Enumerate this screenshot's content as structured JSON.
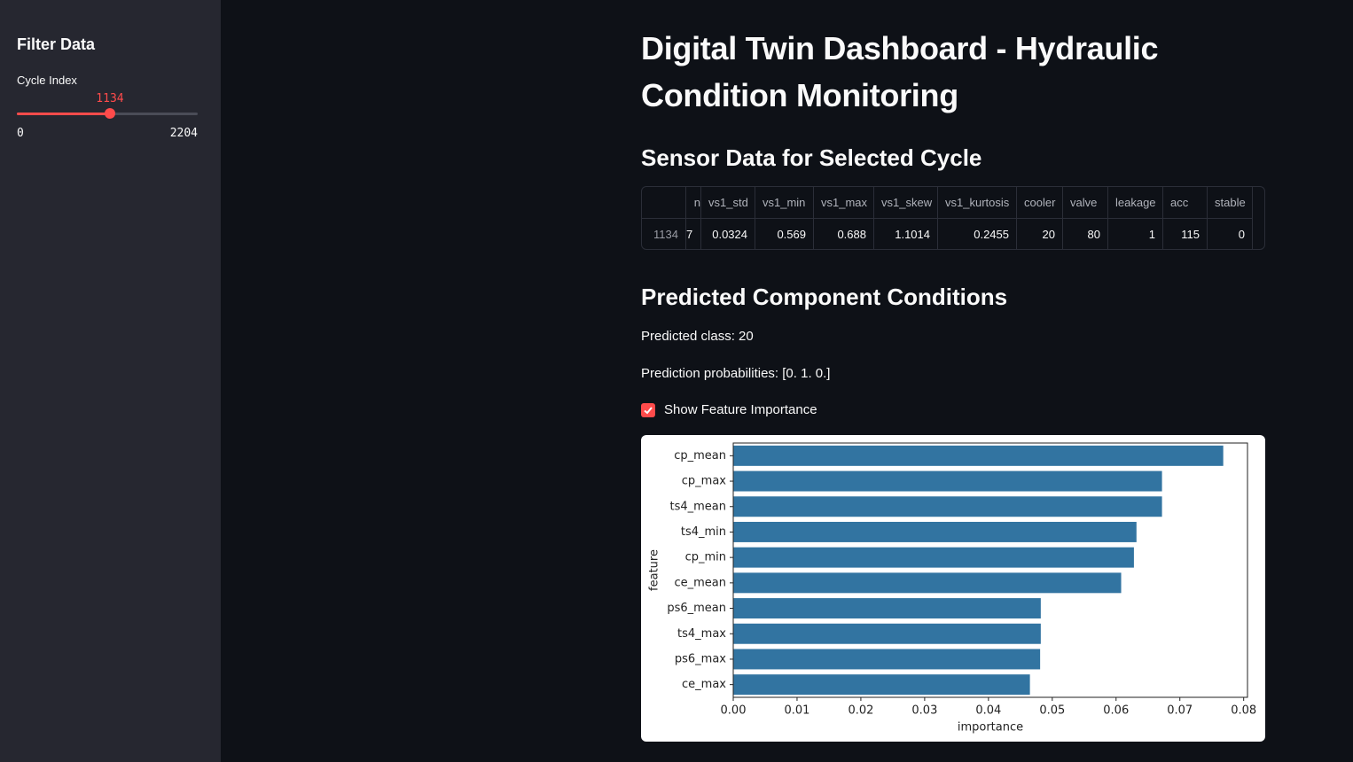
{
  "sidebar": {
    "title": "Filter Data",
    "slider": {
      "label": "Cycle Index",
      "value": 1134,
      "min": 0,
      "max": 2204
    }
  },
  "header": {
    "title": "Digital Twin Dashboard - Hydraulic Condition Monitoring"
  },
  "sensor_section": {
    "title": "Sensor Data for Selected Cycle",
    "table": {
      "columns": [
        "n",
        "vs1_std",
        "vs1_min",
        "vs1_max",
        "vs1_skew",
        "vs1_kurtosis",
        "cooler",
        "valve",
        "leakage",
        "acc",
        "stable"
      ],
      "rows": [
        {
          "index": 1134,
          "cells": [
            "7",
            0.0324,
            0.569,
            0.688,
            1.1014,
            0.2455,
            20,
            80,
            1,
            115,
            0
          ]
        }
      ]
    }
  },
  "prediction_section": {
    "title": "Predicted Component Conditions",
    "predicted_class": "Predicted class: 20",
    "probabilities": "Prediction probabilities: [0. 1. 0.]",
    "checkbox": {
      "label": "Show Feature Importance",
      "checked": true
    }
  },
  "chart_data": {
    "type": "barh",
    "x_label": "importance",
    "y_label": "feature",
    "categories": [
      "cp_mean",
      "cp_max",
      "ts4_mean",
      "ts4_min",
      "cp_min",
      "ce_mean",
      "ps6_mean",
      "ts4_max",
      "ps6_max",
      "ce_max"
    ],
    "values": [
      0.0768,
      0.0672,
      0.0672,
      0.0632,
      0.0628,
      0.0608,
      0.0482,
      0.0482,
      0.0481,
      0.0465
    ],
    "color": "#3274a1",
    "xlim": [
      0,
      0.0806
    ],
    "xticks": [
      {
        "value": 0,
        "label": "0.00"
      },
      {
        "value": 0.01,
        "label": "0.01"
      },
      {
        "value": 0.02,
        "label": "0.02"
      },
      {
        "value": 0.03,
        "label": "0.03"
      },
      {
        "value": 0.04,
        "label": "0.04"
      },
      {
        "value": 0.05,
        "label": "0.05"
      },
      {
        "value": 0.06,
        "label": "0.06"
      },
      {
        "value": 0.07,
        "label": "0.07"
      },
      {
        "value": 0.08,
        "label": "0.08"
      }
    ]
  }
}
